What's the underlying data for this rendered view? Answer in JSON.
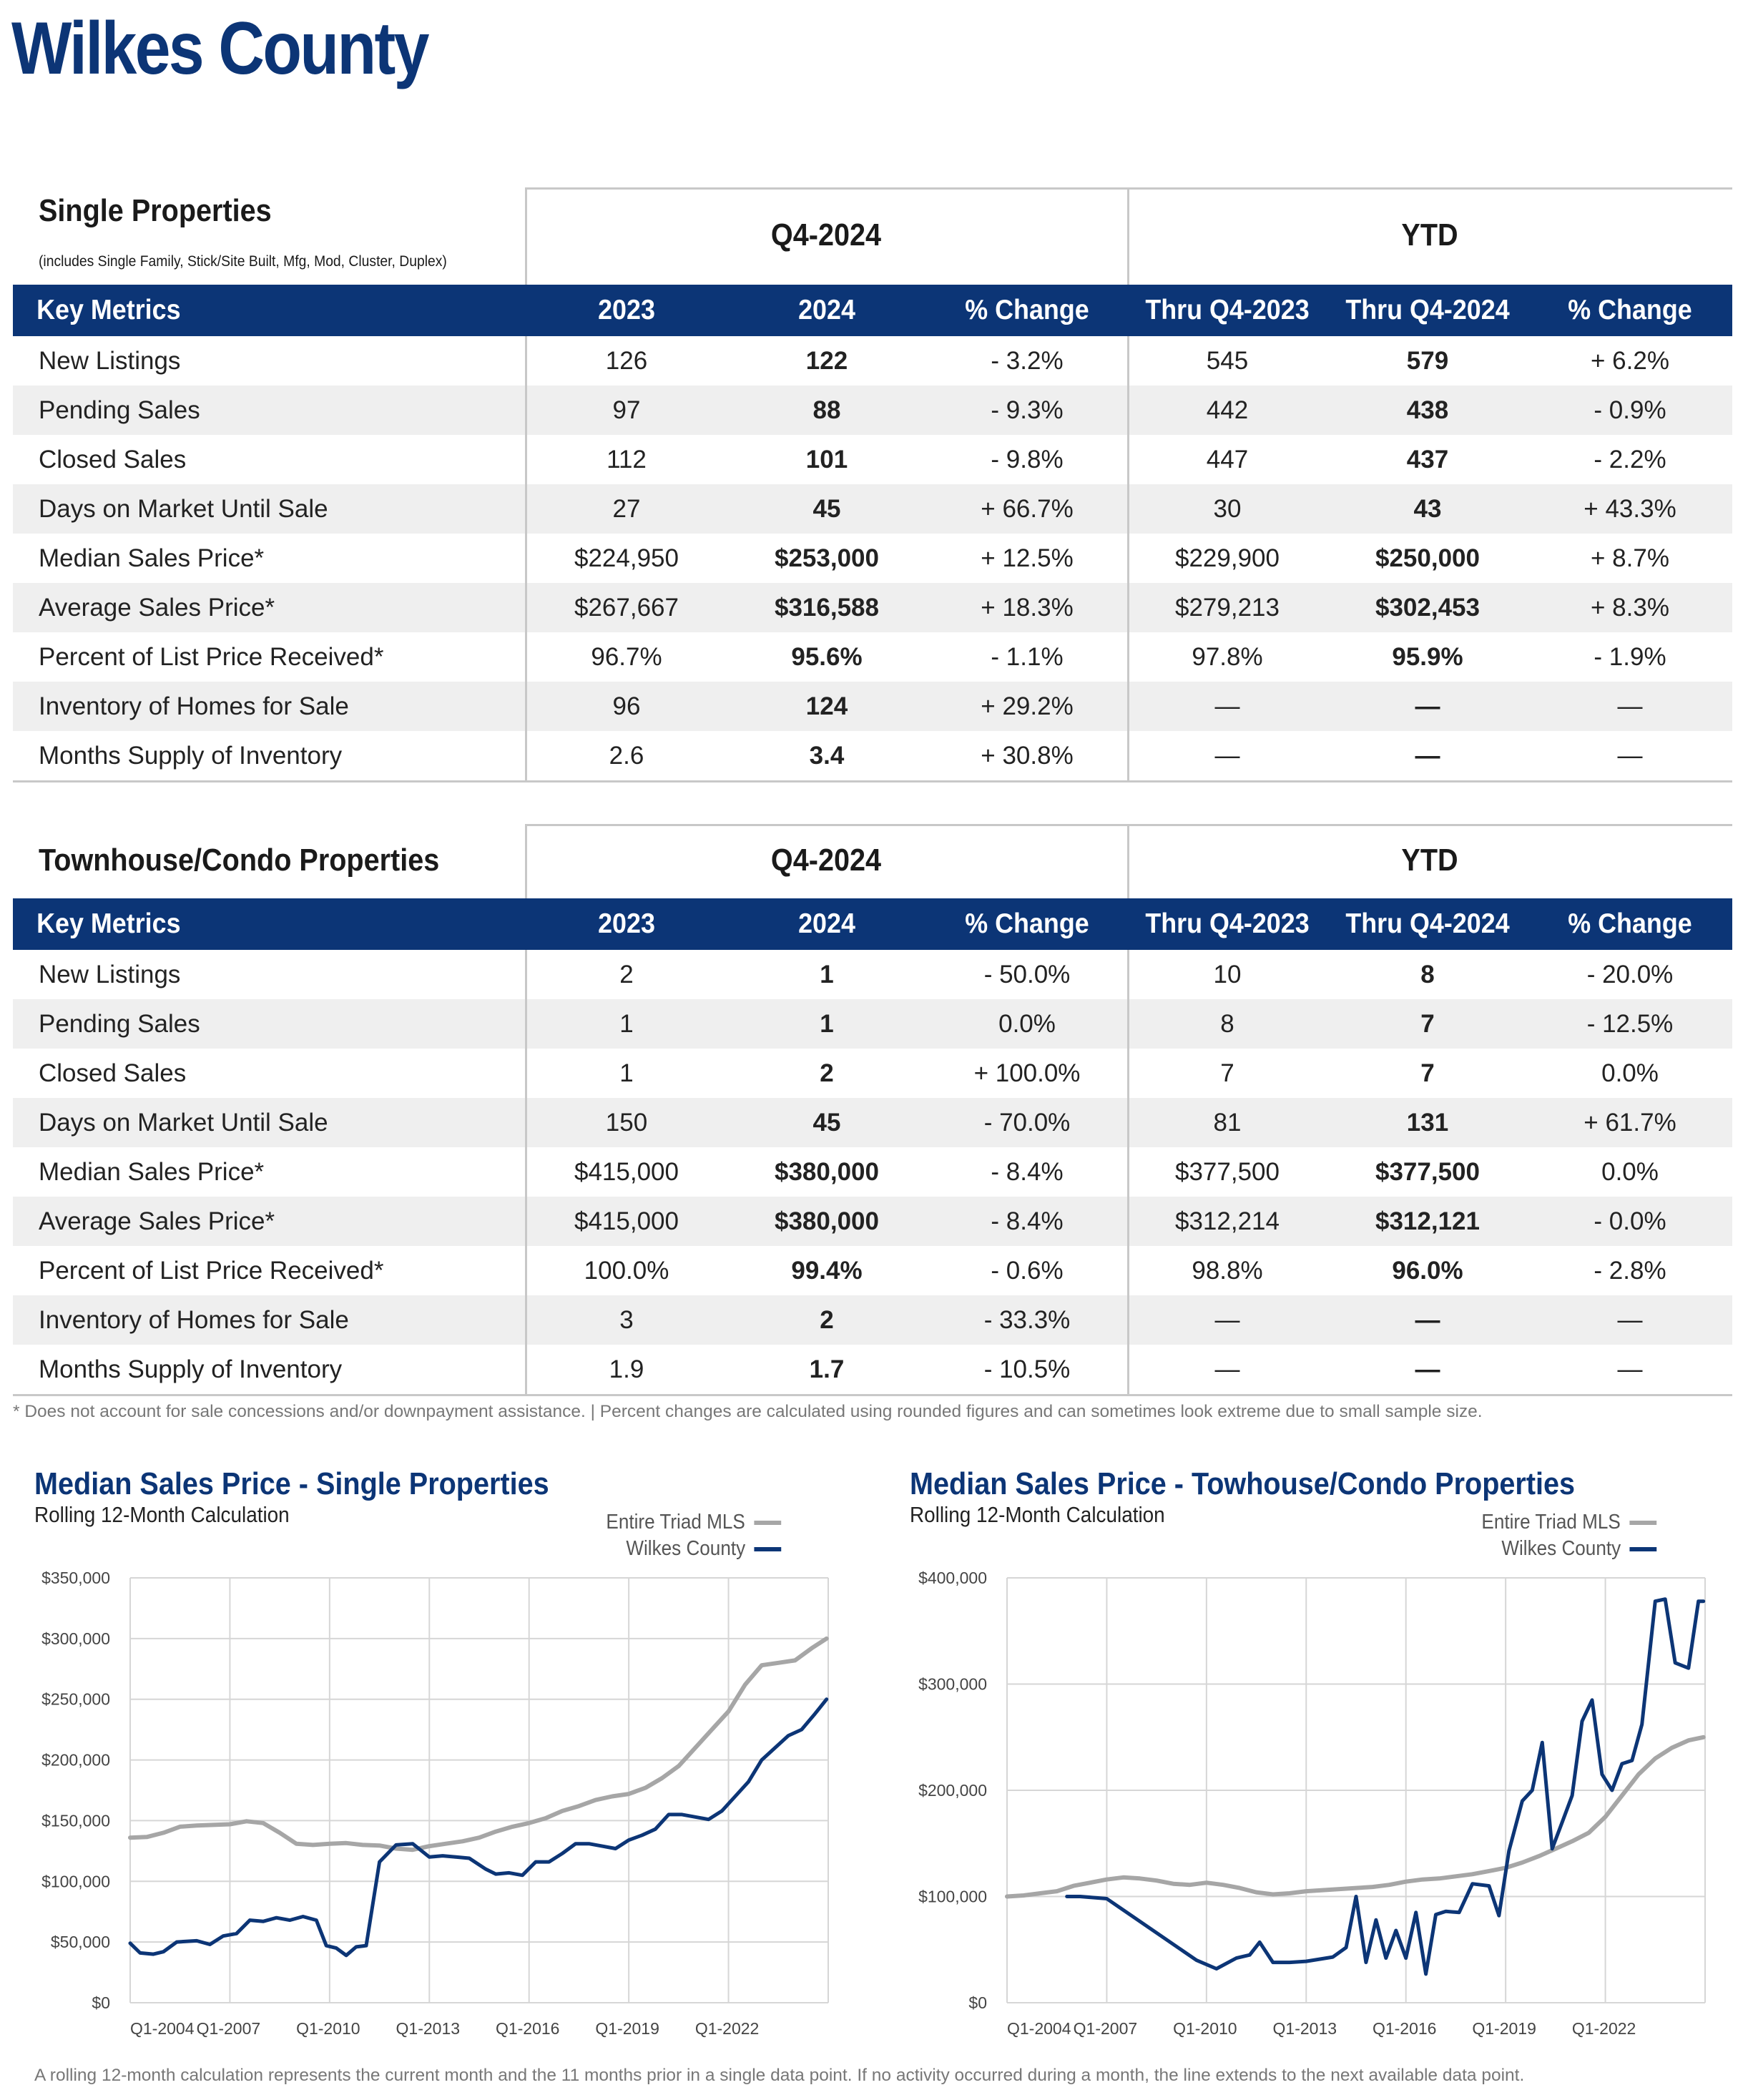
{
  "page_title": "Wilkes County",
  "single": {
    "title": "Single Properties",
    "note": "(includes Single Family, Stick/Site Built, Mfg, Mod, Cluster, Duplex)",
    "period_q": "Q4-2024",
    "period_ytd": "YTD",
    "headers": [
      "Key Metrics",
      "2023",
      "2024",
      "% Change",
      "Thru Q4-2023",
      "Thru Q4-2024",
      "% Change"
    ],
    "rows": [
      {
        "label": "New Listings",
        "q23": "126",
        "q24": "122",
        "qchg": "- 3.2%",
        "y23": "545",
        "y24": "579",
        "ychg": "+ 6.2%"
      },
      {
        "label": "Pending Sales",
        "q23": "97",
        "q24": "88",
        "qchg": "- 9.3%",
        "y23": "442",
        "y24": "438",
        "ychg": "- 0.9%"
      },
      {
        "label": "Closed Sales",
        "q23": "112",
        "q24": "101",
        "qchg": "- 9.8%",
        "y23": "447",
        "y24": "437",
        "ychg": "- 2.2%"
      },
      {
        "label": "Days on Market Until Sale",
        "q23": "27",
        "q24": "45",
        "qchg": "+ 66.7%",
        "y23": "30",
        "y24": "43",
        "ychg": "+ 43.3%"
      },
      {
        "label": "Median Sales Price*",
        "q23": "$224,950",
        "q24": "$253,000",
        "qchg": "+ 12.5%",
        "y23": "$229,900",
        "y24": "$250,000",
        "ychg": "+ 8.7%"
      },
      {
        "label": "Average Sales Price*",
        "q23": "$267,667",
        "q24": "$316,588",
        "qchg": "+ 18.3%",
        "y23": "$279,213",
        "y24": "$302,453",
        "ychg": "+ 8.3%"
      },
      {
        "label": "Percent of List Price Received*",
        "q23": "96.7%",
        "q24": "95.6%",
        "qchg": "- 1.1%",
        "y23": "97.8%",
        "y24": "95.9%",
        "ychg": "- 1.9%"
      },
      {
        "label": "Inventory of Homes for Sale",
        "q23": "96",
        "q24": "124",
        "qchg": "+ 29.2%",
        "y23": "—",
        "y24": "—",
        "ychg": "—"
      },
      {
        "label": "Months Supply of Inventory",
        "q23": "2.6",
        "q24": "3.4",
        "qchg": "+ 30.8%",
        "y23": "—",
        "y24": "—",
        "ychg": "—"
      }
    ]
  },
  "townhouse": {
    "title": "Townhouse/Condo Properties",
    "period_q": "Q4-2024",
    "period_ytd": "YTD",
    "headers": [
      "Key Metrics",
      "2023",
      "2024",
      "% Change",
      "Thru Q4-2023",
      "Thru Q4-2024",
      "% Change"
    ],
    "rows": [
      {
        "label": "New Listings",
        "q23": "2",
        "q24": "1",
        "qchg": "- 50.0%",
        "y23": "10",
        "y24": "8",
        "ychg": "- 20.0%"
      },
      {
        "label": "Pending Sales",
        "q23": "1",
        "q24": "1",
        "qchg": "0.0%",
        "y23": "8",
        "y24": "7",
        "ychg": "- 12.5%"
      },
      {
        "label": "Closed Sales",
        "q23": "1",
        "q24": "2",
        "qchg": "+ 100.0%",
        "y23": "7",
        "y24": "7",
        "ychg": "0.0%"
      },
      {
        "label": "Days on Market Until Sale",
        "q23": "150",
        "q24": "45",
        "qchg": "- 70.0%",
        "y23": "81",
        "y24": "131",
        "ychg": "+ 61.7%"
      },
      {
        "label": "Median Sales Price*",
        "q23": "$415,000",
        "q24": "$380,000",
        "qchg": "- 8.4%",
        "y23": "$377,500",
        "y24": "$377,500",
        "ychg": "0.0%"
      },
      {
        "label": "Average Sales Price*",
        "q23": "$415,000",
        "q24": "$380,000",
        "qchg": "- 8.4%",
        "y23": "$312,214",
        "y24": "$312,121",
        "ychg": "- 0.0%"
      },
      {
        "label": "Percent of List Price Received*",
        "q23": "100.0%",
        "q24": "99.4%",
        "qchg": "- 0.6%",
        "y23": "98.8%",
        "y24": "96.0%",
        "ychg": "- 2.8%"
      },
      {
        "label": "Inventory of Homes for Sale",
        "q23": "3",
        "q24": "2",
        "qchg": "- 33.3%",
        "y23": "—",
        "y24": "—",
        "ychg": "—"
      },
      {
        "label": "Months Supply of Inventory",
        "q23": "1.9",
        "q24": "1.7",
        "qchg": "- 10.5%",
        "y23": "—",
        "y24": "—",
        "ychg": "—"
      }
    ]
  },
  "footnote": "* Does not account for sale concessions and/or downpayment assistance. | Percent changes are calculated using rounded figures and can sometimes look extreme due to small sample size.",
  "bottom_note": "A rolling 12-month calculation represents the current month and the 11 months prior in a single data point. If no activity occurred during a month, the line extends to the next available data point.",
  "colors": {
    "navy": "#0c3576",
    "gray_line": "#a6a6a6",
    "alt_row": "#efefef"
  },
  "chart_data": [
    {
      "type": "line",
      "title": "Median Sales Price - Single Properties",
      "subtitle": "Rolling 12-Month Calculation",
      "x_ticks": [
        "Q1-2004",
        "Q1-2007",
        "Q1-2010",
        "Q1-2013",
        "Q1-2016",
        "Q1-2019",
        "Q1-2022"
      ],
      "y_ticks": [
        "$0",
        "$50,000",
        "$100,000",
        "$150,000",
        "$200,000",
        "$250,000",
        "$300,000",
        "$350,000"
      ],
      "xlim": [
        2004.0,
        2025.0
      ],
      "ylim": [
        0,
        350000
      ],
      "series": [
        {
          "name": "Entire Triad MLS",
          "color": "#a6a6a6",
          "x": [
            2004.0,
            2004.5,
            2005.0,
            2005.5,
            2006.0,
            2006.5,
            2007.0,
            2007.5,
            2008.0,
            2008.5,
            2009.0,
            2009.5,
            2010.0,
            2010.5,
            2011.0,
            2011.5,
            2012.0,
            2012.5,
            2013.0,
            2013.5,
            2014.0,
            2014.5,
            2015.0,
            2015.5,
            2016.0,
            2016.5,
            2017.0,
            2017.5,
            2018.0,
            2018.5,
            2019.0,
            2019.5,
            2020.0,
            2020.5,
            2021.0,
            2021.5,
            2022.0,
            2022.5,
            2023.0,
            2023.5,
            2024.0,
            2024.5,
            2024.95
          ],
          "values": [
            136000,
            136500,
            140000,
            145000,
            146000,
            146500,
            147000,
            149500,
            148000,
            140000,
            131000,
            130000,
            131000,
            131500,
            130000,
            129500,
            127000,
            126000,
            129000,
            131000,
            133000,
            136000,
            141000,
            145000,
            148000,
            152000,
            158000,
            162000,
            167000,
            170000,
            172000,
            177000,
            185000,
            195000,
            210000,
            225000,
            240000,
            262000,
            278000,
            280000,
            282000,
            292000,
            300000
          ]
        },
        {
          "name": "Wilkes County",
          "color": "#0c3576",
          "x": [
            2004.0,
            2004.3,
            2004.7,
            2005.0,
            2005.4,
            2006.0,
            2006.4,
            2006.8,
            2007.2,
            2007.6,
            2008.0,
            2008.4,
            2008.8,
            2009.2,
            2009.6,
            2009.9,
            2010.2,
            2010.5,
            2010.8,
            2011.1,
            2011.5,
            2012.0,
            2012.5,
            2013.0,
            2013.4,
            2013.8,
            2014.2,
            2014.7,
            2015.0,
            2015.4,
            2015.8,
            2016.2,
            2016.6,
            2017.0,
            2017.4,
            2017.8,
            2018.2,
            2018.6,
            2019.0,
            2019.4,
            2019.8,
            2020.2,
            2020.6,
            2021.0,
            2021.4,
            2021.8,
            2022.2,
            2022.6,
            2023.0,
            2023.4,
            2023.8,
            2024.2,
            2024.6,
            2024.95
          ],
          "values": [
            49000,
            41000,
            40000,
            42000,
            50000,
            51000,
            48000,
            55000,
            57000,
            68000,
            67000,
            70000,
            68000,
            71000,
            68000,
            47000,
            45000,
            39000,
            46000,
            47000,
            116000,
            130000,
            131000,
            120000,
            121000,
            120000,
            119000,
            110000,
            106000,
            107000,
            105000,
            116000,
            116000,
            123000,
            131000,
            131000,
            129000,
            127000,
            134000,
            138000,
            143000,
            155000,
            155000,
            153000,
            151000,
            158000,
            170000,
            182000,
            200000,
            210000,
            220000,
            225000,
            238000,
            250000
          ]
        }
      ]
    },
    {
      "type": "line",
      "title": "Median Sales Price - Towhouse/Condo Properties",
      "subtitle": "Rolling 12-Month Calculation",
      "x_ticks": [
        "Q1-2004",
        "Q1-2007",
        "Q1-2010",
        "Q1-2013",
        "Q1-2016",
        "Q1-2019",
        "Q1-2022"
      ],
      "y_ticks": [
        "$0",
        "$100,000",
        "$200,000",
        "$300,000",
        "$400,000"
      ],
      "xlim": [
        2004.0,
        2025.0
      ],
      "ylim": [
        0,
        400000
      ],
      "series": [
        {
          "name": "Entire Triad MLS",
          "color": "#a6a6a6",
          "x": [
            2004.0,
            2004.5,
            2005.0,
            2005.5,
            2006.0,
            2006.5,
            2007.0,
            2007.5,
            2008.0,
            2008.5,
            2009.0,
            2009.5,
            2010.0,
            2010.5,
            2011.0,
            2011.5,
            2012.0,
            2012.5,
            2013.0,
            2013.5,
            2014.0,
            2014.5,
            2015.0,
            2015.5,
            2016.0,
            2016.5,
            2017.0,
            2017.5,
            2018.0,
            2018.5,
            2019.0,
            2019.5,
            2020.0,
            2020.5,
            2021.0,
            2021.5,
            2022.0,
            2022.5,
            2023.0,
            2023.5,
            2024.0,
            2024.5,
            2024.95
          ],
          "values": [
            100000,
            101000,
            103000,
            105000,
            110000,
            113000,
            116000,
            118000,
            117000,
            115000,
            112000,
            111000,
            113000,
            111000,
            108000,
            104000,
            102000,
            103000,
            105000,
            106000,
            107000,
            108000,
            109000,
            111000,
            114000,
            116000,
            117000,
            119000,
            121000,
            124000,
            127000,
            132000,
            138000,
            145000,
            152000,
            160000,
            175000,
            195000,
            215000,
            230000,
            240000,
            247000,
            250000
          ]
        },
        {
          "name": "Wilkes County",
          "color": "#0c3576",
          "x": [
            2005.8,
            2006.2,
            2006.6,
            2007.0,
            2009.7,
            2010.3,
            2010.9,
            2011.3,
            2011.6,
            2012.0,
            2012.5,
            2013.0,
            2013.4,
            2013.8,
            2014.2,
            2014.5,
            2014.8,
            2015.1,
            2015.4,
            2015.7,
            2016.0,
            2016.3,
            2016.6,
            2016.9,
            2017.2,
            2017.6,
            2018.0,
            2018.5,
            2018.8,
            2019.1,
            2019.5,
            2019.8,
            2020.1,
            2020.4,
            2020.7,
            2021.0,
            2021.3,
            2021.6,
            2021.9,
            2022.2,
            2022.5,
            2022.8,
            2023.1,
            2023.5,
            2023.8,
            2024.1,
            2024.5,
            2024.8,
            2024.95
          ],
          "values": [
            100000,
            100000,
            99000,
            98000,
            40000,
            32000,
            42000,
            45000,
            57000,
            38000,
            38000,
            39000,
            41000,
            43000,
            52000,
            100000,
            38000,
            78000,
            42000,
            68000,
            42000,
            85000,
            27000,
            83000,
            86000,
            85000,
            112000,
            110000,
            82000,
            143000,
            190000,
            200000,
            245000,
            145000,
            170000,
            195000,
            265000,
            285000,
            215000,
            200000,
            225000,
            228000,
            262000,
            378000,
            380000,
            320000,
            315000,
            378000,
            378000
          ]
        }
      ]
    }
  ],
  "chart_text": {
    "c1_title": "Median Sales Price - Single Properties",
    "c1_sub": "Rolling 12-Month Calculation",
    "c2_title": "Median Sales Price - Towhouse/Condo Properties",
    "c2_sub": "Rolling 12-Month Calculation",
    "legend_triad": "Entire Triad MLS",
    "legend_wilkes": "Wilkes County"
  }
}
